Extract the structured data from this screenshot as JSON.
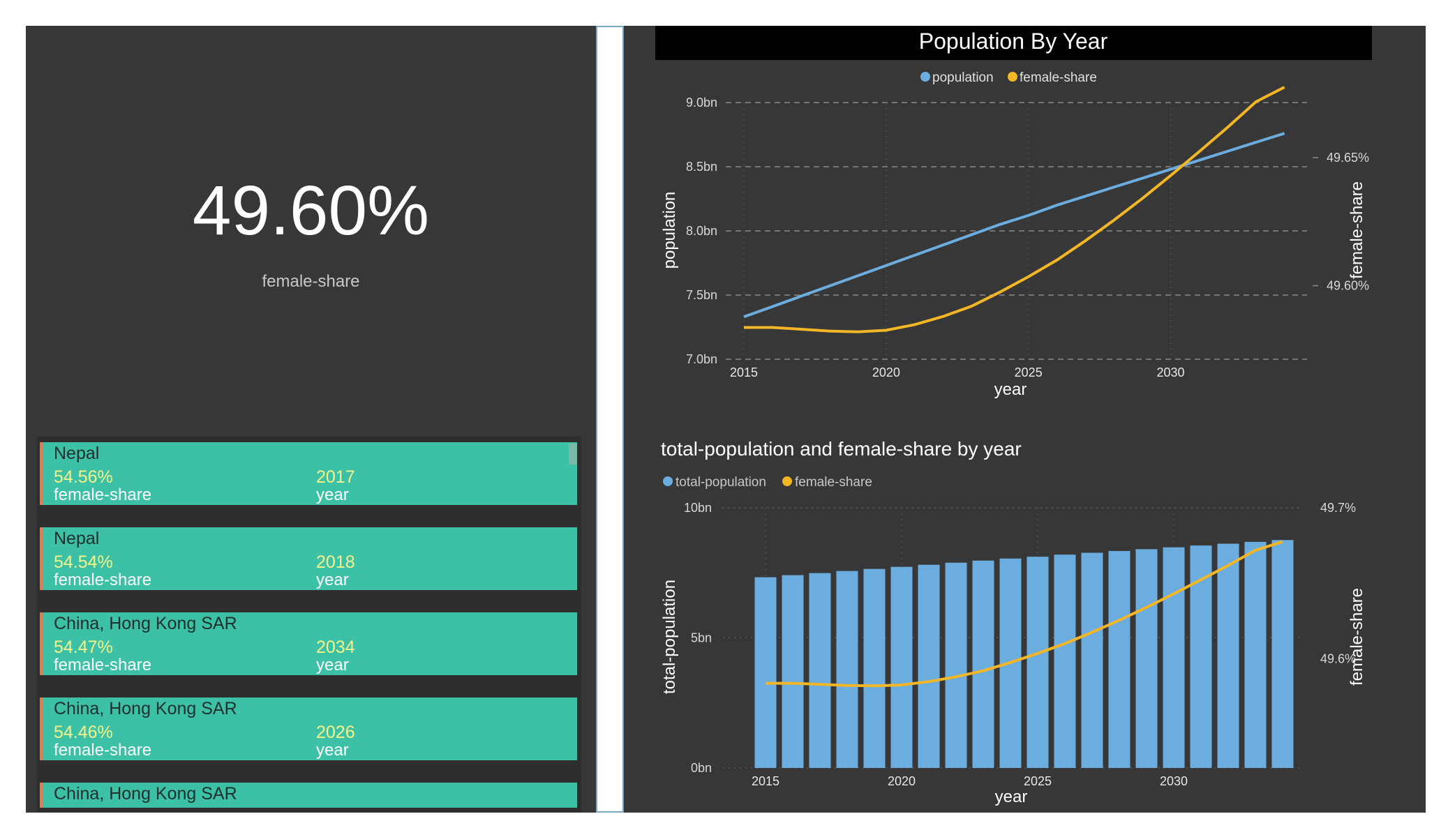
{
  "kpi": {
    "value": "49.60%",
    "label": "female-share"
  },
  "cards": [
    {
      "country": "Nepal",
      "female_share": "54.56%",
      "year": "2017",
      "female_share_label": "female-share",
      "year_label": "year"
    },
    {
      "country": "Nepal",
      "female_share": "54.54%",
      "year": "2018",
      "female_share_label": "female-share",
      "year_label": "year"
    },
    {
      "country": "China, Hong Kong SAR",
      "female_share": "54.47%",
      "year": "2034",
      "female_share_label": "female-share",
      "year_label": "year"
    },
    {
      "country": "China, Hong Kong SAR",
      "female_share": "54.46%",
      "year": "2026",
      "female_share_label": "female-share",
      "year_label": "year"
    },
    {
      "country": "China, Hong Kong SAR",
      "female_share": "",
      "year": "",
      "female_share_label": "",
      "year_label": ""
    }
  ],
  "colors": {
    "population": "#6caddf",
    "female_share": "#f2b626",
    "card": "#3cc0a6",
    "card_accent": "#e07b53",
    "panel": "#373737"
  },
  "chart_data": [
    {
      "type": "line",
      "title": "Population By Year",
      "xlabel": "year",
      "ylabel": "population",
      "y2label": "female-share",
      "x": [
        2015,
        2016,
        2017,
        2018,
        2019,
        2020,
        2021,
        2022,
        2023,
        2024,
        2025,
        2026,
        2027,
        2028,
        2029,
        2030,
        2031,
        2032,
        2033,
        2034
      ],
      "x_ticks": [
        "2015",
        "2020",
        "2025",
        "2030"
      ],
      "y_ticks": [
        "7.0bn",
        "7.5bn",
        "8.0bn",
        "8.5bn",
        "9.0bn"
      ],
      "y2_ticks": [
        "49.60%",
        "49.65%"
      ],
      "ylim": [
        7.0,
        9.0
      ],
      "y2lim": [
        49.5713,
        49.6715
      ],
      "legend": "top-center",
      "grid": true,
      "series": [
        {
          "name": "population",
          "axis": "left",
          "unit": "bn",
          "values": [
            7.33,
            7.41,
            7.49,
            7.57,
            7.65,
            7.73,
            7.81,
            7.89,
            7.97,
            8.05,
            8.12,
            8.2,
            8.27,
            8.34,
            8.41,
            8.48,
            8.55,
            8.62,
            8.69,
            8.76
          ]
        },
        {
          "name": "female-share",
          "axis": "right",
          "unit": "%",
          "values": [
            49.5837,
            49.5837,
            49.583,
            49.5823,
            49.582,
            49.5826,
            49.5848,
            49.588,
            49.592,
            49.5975,
            49.6035,
            49.61,
            49.6175,
            49.6255,
            49.634,
            49.643,
            49.6523,
            49.6618,
            49.6718,
            49.6775
          ]
        }
      ]
    },
    {
      "type": "bar",
      "title": "total-population and female-share by year",
      "xlabel": "year",
      "ylabel": "total-population",
      "y2label": "female-share",
      "categories": [
        2015,
        2016,
        2017,
        2018,
        2019,
        2020,
        2021,
        2022,
        2023,
        2024,
        2025,
        2026,
        2027,
        2028,
        2029,
        2030,
        2031,
        2032,
        2033,
        2034
      ],
      "x_ticks": [
        "2015",
        "2020",
        "2025",
        "2030"
      ],
      "y_ticks": [
        "0bn",
        "5bn",
        "10bn"
      ],
      "y2_ticks": [
        "49.6%",
        "49.7%"
      ],
      "ylim": [
        0,
        10
      ],
      "y2lim": [
        49.5276,
        49.7
      ],
      "legend": "top-left",
      "series": [
        {
          "name": "total-population",
          "axis": "left",
          "unit": "bn",
          "values": [
            7.33,
            7.41,
            7.49,
            7.57,
            7.65,
            7.73,
            7.81,
            7.89,
            7.97,
            8.05,
            8.12,
            8.2,
            8.27,
            8.34,
            8.41,
            8.48,
            8.55,
            8.62,
            8.69,
            8.76
          ]
        },
        {
          "name": "female-share",
          "axis": "right",
          "unit": "%",
          "values": [
            49.5837,
            49.5837,
            49.583,
            49.5823,
            49.582,
            49.5826,
            49.5848,
            49.588,
            49.592,
            49.5975,
            49.6035,
            49.61,
            49.6175,
            49.6255,
            49.634,
            49.643,
            49.6523,
            49.6618,
            49.6718,
            49.6775
          ]
        }
      ]
    }
  ]
}
